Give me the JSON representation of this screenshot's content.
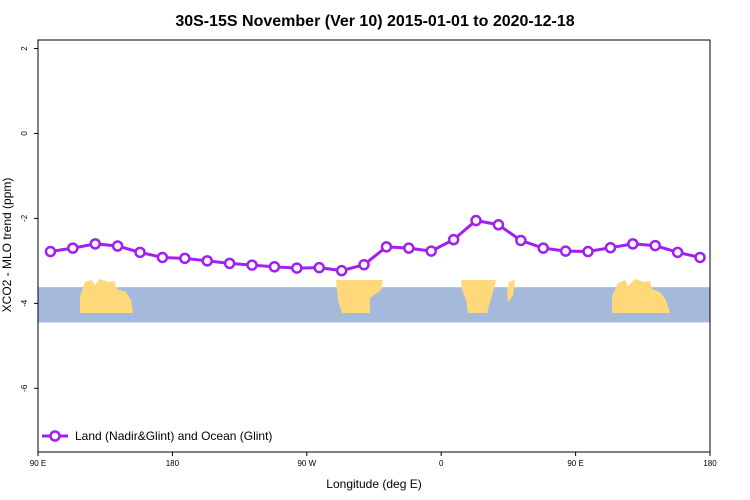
{
  "chart_data": {
    "type": "line",
    "title": "30S-15S November (Ver 10)   2015-01-01 to 2020-12-18",
    "xlabel": "Longitude (deg E)",
    "ylabel": "XCO2 - MLO trend (ppm)",
    "xlim": [
      -90,
      180
    ],
    "ylim": [
      -7.5,
      2.2
    ],
    "xticks": [
      {
        "value": -90,
        "label": "90 E"
      },
      {
        "value": -36,
        "label": "180"
      },
      {
        "value": 18,
        "label": "90 W"
      },
      {
        "value": 72,
        "label": "0"
      },
      {
        "value": 126,
        "label": "90 E"
      },
      {
        "value": 180,
        "label": "180"
      }
    ],
    "yticks": [
      -6,
      -4,
      -2,
      0,
      2
    ],
    "grid": false,
    "legend_position": "bottom-left",
    "series": [
      {
        "name": "Land (Nadir&Glint) and Ocean (Glint)",
        "color": "#a020f0",
        "x": [
          -85,
          -76,
          -67,
          -58,
          -49,
          -40,
          -31,
          -22,
          -13,
          -4,
          5,
          14,
          23,
          32,
          41,
          50,
          59,
          68,
          77,
          86,
          95,
          104,
          113,
          122,
          131,
          140,
          149,
          158,
          167,
          176
        ],
        "y": [
          -2.78,
          -2.7,
          -2.6,
          -2.65,
          -2.8,
          -2.92,
          -2.94,
          -3.0,
          -3.06,
          -3.1,
          -3.14,
          -3.17,
          -3.16,
          -3.23,
          -3.09,
          -2.67,
          -2.7,
          -2.77,
          -2.5,
          -2.05,
          -2.15,
          -2.52,
          -2.7,
          -2.77,
          -2.78,
          -2.69,
          -2.6,
          -2.64,
          -2.8,
          -2.92
        ]
      }
    ],
    "map_strip": {
      "y_range": [
        -4.45,
        -3.62
      ],
      "ocean_color": "#a4b9dc",
      "land_color": "#ffd879"
    }
  }
}
